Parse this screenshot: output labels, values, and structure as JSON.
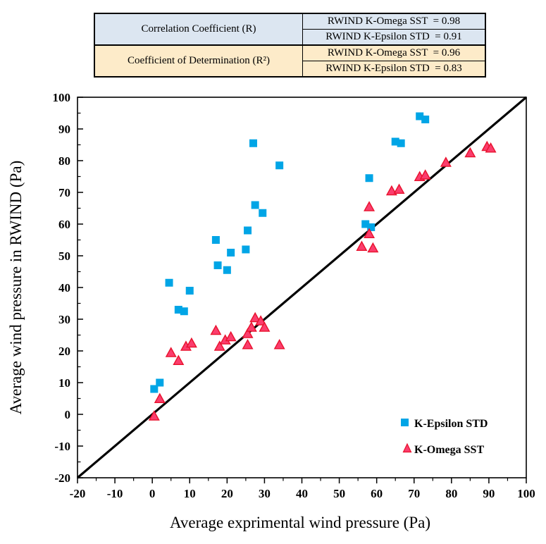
{
  "table": {
    "rows": [
      {
        "label": "Correlation Coefficient (R)",
        "values": [
          "RWIND K-Omega SST  = 0.98",
          "RWIND K-Epsilon STD  = 0.91"
        ]
      },
      {
        "label": "Coefficient of Determination (R²)",
        "values": [
          "RWIND K-Omega SST  = 0.96",
          "RWIND K-Epsilon STD  = 0.83"
        ]
      }
    ],
    "colors": {
      "correlation_bg": "#DCE6F1",
      "determination_bg": "#FDEBC9"
    }
  },
  "chart_data": {
    "type": "scatter",
    "title": "",
    "xlabel": "Average exprimental wind pressure (Pa)",
    "ylabel": "Average wind pressure in RWIND (Pa)",
    "xlim": [
      -20,
      100
    ],
    "ylim": [
      -20,
      100
    ],
    "major_tick_step": 10,
    "minor_tick_step": 5,
    "grid": false,
    "legend_position": "lower-right",
    "reference_line": {
      "from": [
        -20,
        -20
      ],
      "to": [
        100,
        100
      ],
      "color": "#000000",
      "width": 3.2
    },
    "series": [
      {
        "name": "K-Epsilon STD",
        "marker": "square",
        "color": "#00A5E6",
        "points": [
          [
            0.5,
            8
          ],
          [
            2,
            10
          ],
          [
            4.5,
            41.5
          ],
          [
            7,
            33
          ],
          [
            8.5,
            32.5
          ],
          [
            10,
            39
          ],
          [
            17,
            55
          ],
          [
            17.5,
            47
          ],
          [
            20,
            45.5
          ],
          [
            21,
            51
          ],
          [
            25,
            52
          ],
          [
            25.5,
            58
          ],
          [
            27.5,
            66
          ],
          [
            29.5,
            63.5
          ],
          [
            27,
            85.5
          ],
          [
            34,
            78.5
          ],
          [
            57,
            60
          ],
          [
            58.5,
            59
          ],
          [
            58,
            74.5
          ],
          [
            65,
            86
          ],
          [
            66.5,
            85.5
          ],
          [
            71.5,
            94
          ],
          [
            73,
            93
          ]
        ]
      },
      {
        "name": "K-Omega SST",
        "marker": "triangle",
        "color": "#FB3D6D",
        "edge_color": "#E8122D",
        "points": [
          [
            0.5,
            -0.5
          ],
          [
            2,
            5
          ],
          [
            5,
            19.5
          ],
          [
            7,
            17
          ],
          [
            9,
            21.5
          ],
          [
            10.5,
            22.5
          ],
          [
            17,
            26.5
          ],
          [
            18,
            21.5
          ],
          [
            19.5,
            23.5
          ],
          [
            21,
            24.5
          ],
          [
            25.5,
            22
          ],
          [
            25.5,
            25.5
          ],
          [
            26.5,
            27.5
          ],
          [
            27.5,
            30.5
          ],
          [
            29,
            29.5
          ],
          [
            30,
            27.5
          ],
          [
            34,
            22
          ],
          [
            56,
            53
          ],
          [
            59,
            52.5
          ],
          [
            58,
            57
          ],
          [
            58,
            65.5
          ],
          [
            64,
            70.5
          ],
          [
            66,
            71
          ],
          [
            71.5,
            75
          ],
          [
            73,
            75.5
          ],
          [
            78.5,
            79.5
          ],
          [
            85,
            82.5
          ],
          [
            89.5,
            84.5
          ],
          [
            90.5,
            84
          ]
        ]
      }
    ]
  }
}
